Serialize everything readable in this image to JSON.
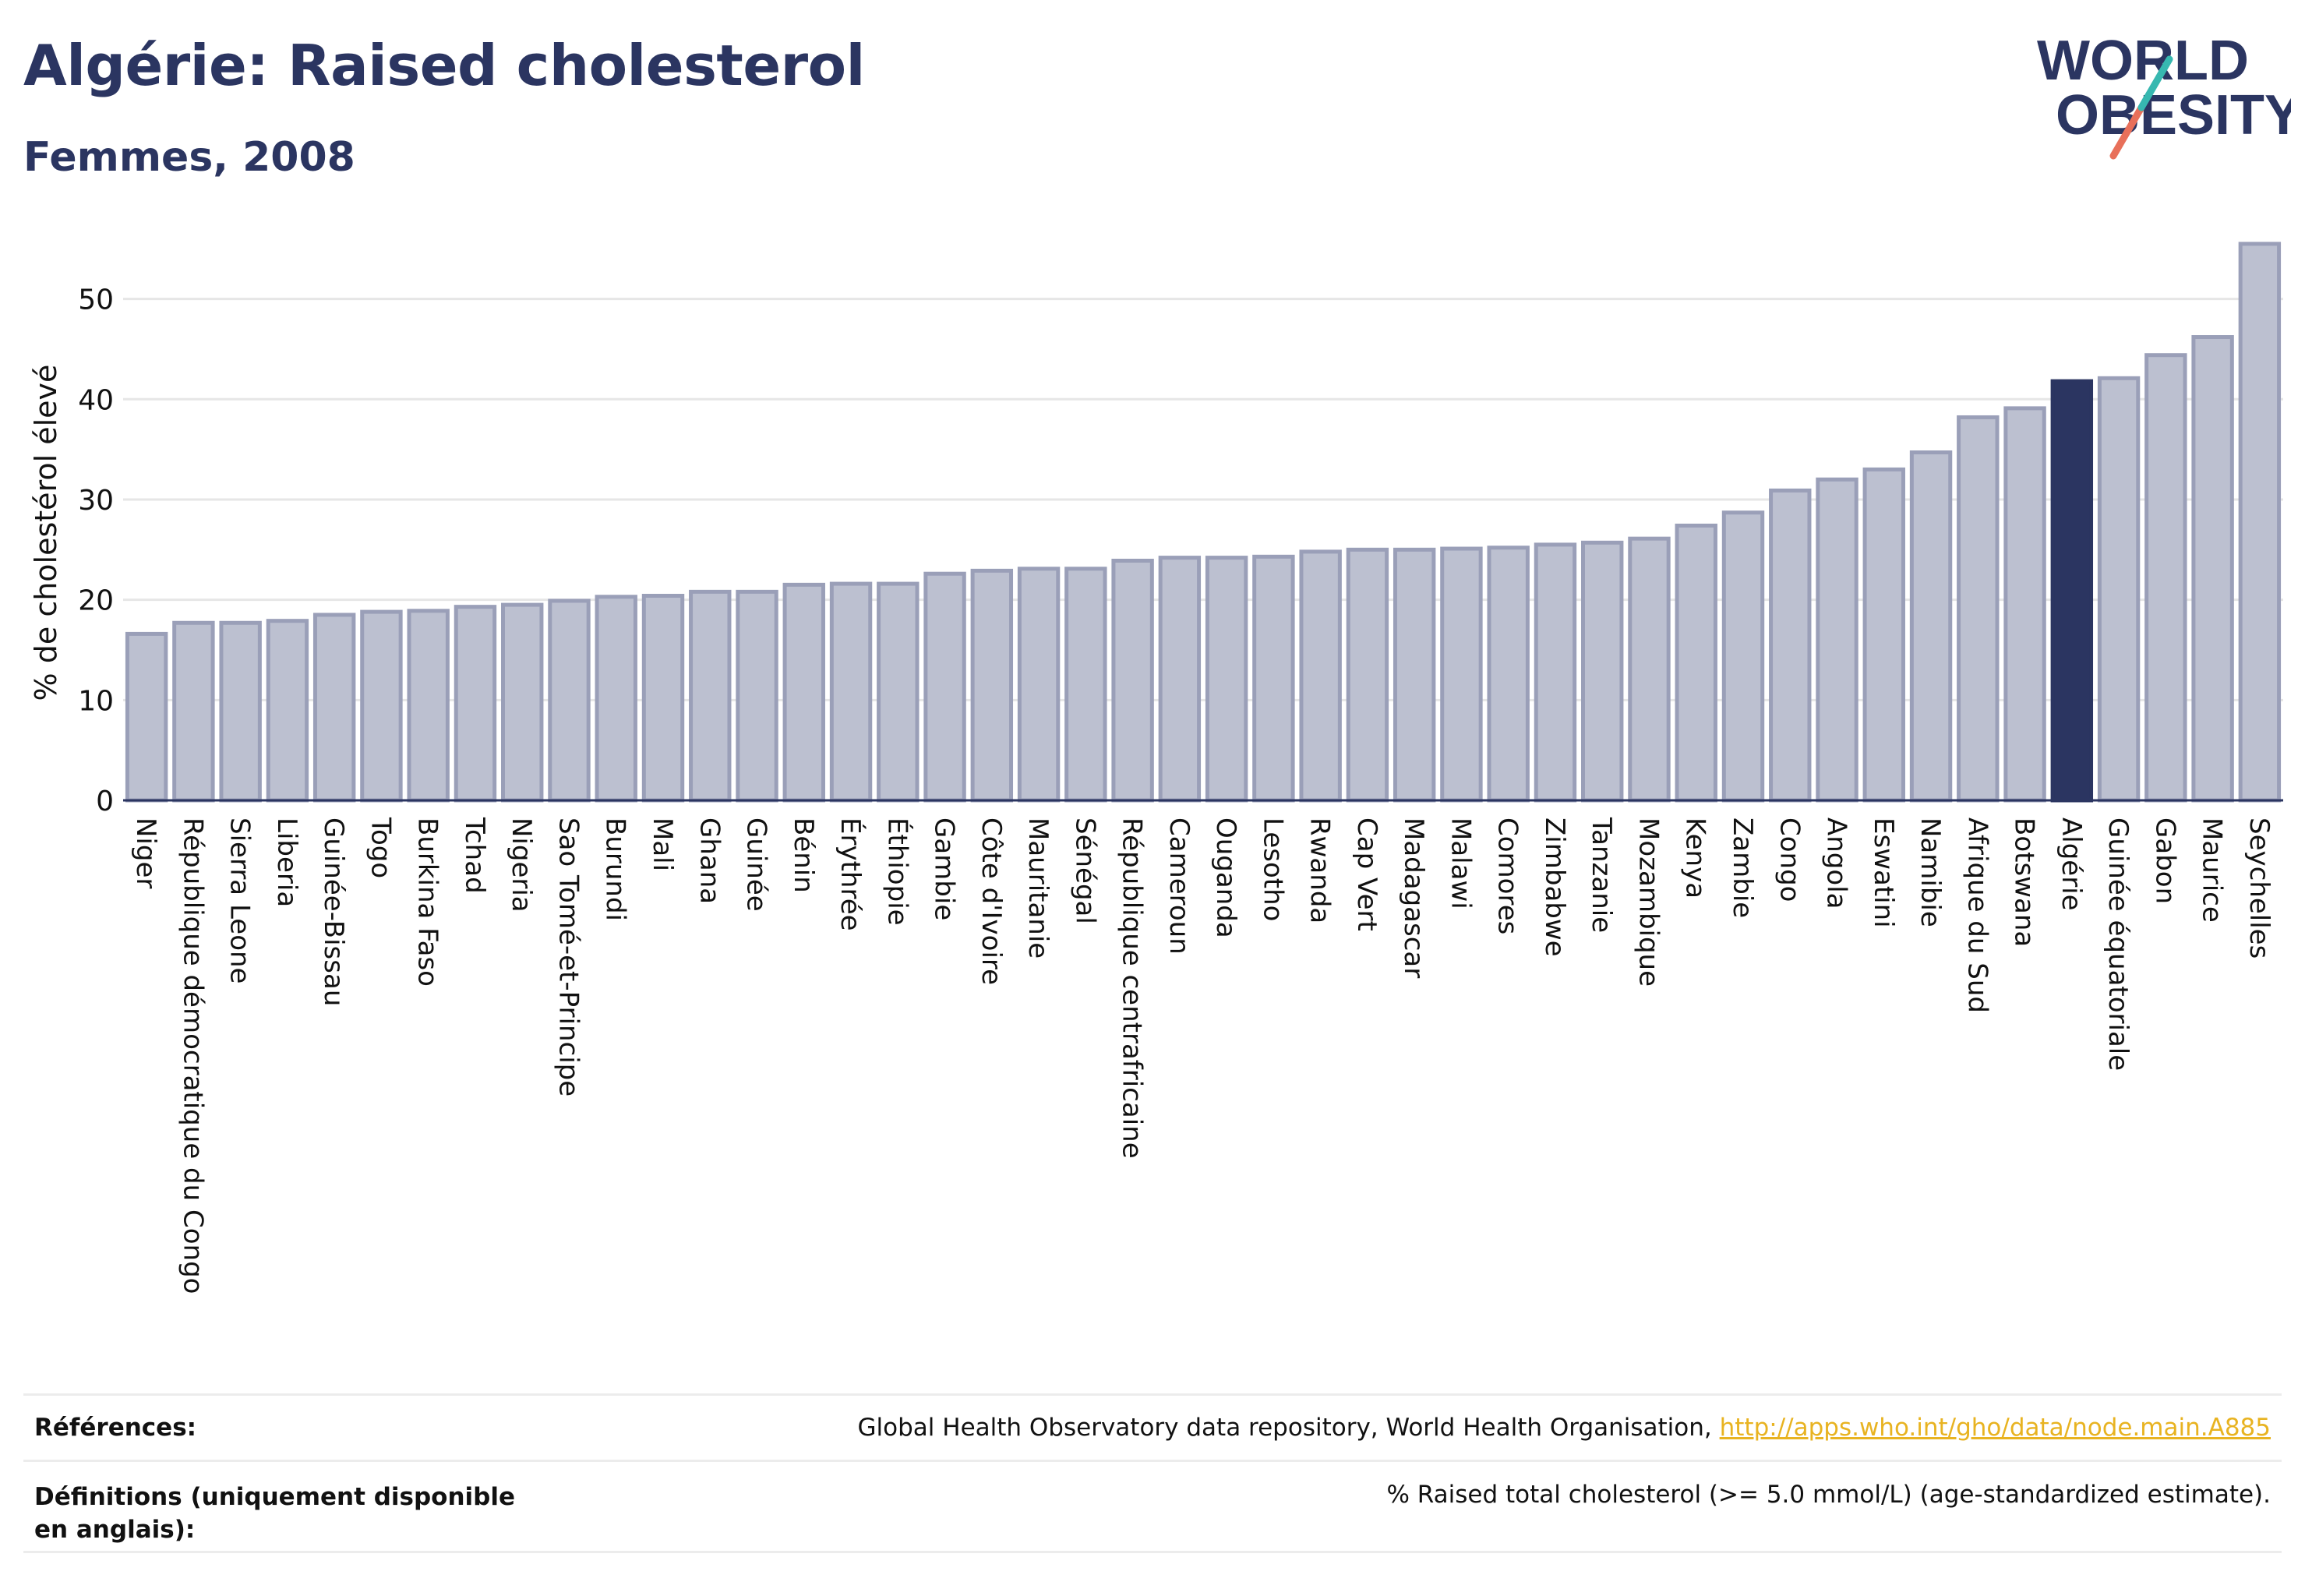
{
  "header": {
    "title": "Algérie: Raised cholesterol",
    "subtitle": "Femmes, 2008"
  },
  "logo": {
    "line1": "WORLD",
    "line2": "OBESITY"
  },
  "colors": {
    "title": "#2b3561",
    "highlight": "#2b3561",
    "bar_fill": "#bcc0d0",
    "bar_stroke": "#9a9fb8",
    "link": "#e8b321"
  },
  "chart_data": {
    "type": "bar",
    "title": "Algérie: Raised cholesterol",
    "subtitle": "Femmes, 2008",
    "xlabel": "",
    "ylabel": "% de cholestérol élevé",
    "ylim": [
      0,
      56.5
    ],
    "yticks": [
      0,
      10,
      20,
      30,
      40,
      50
    ],
    "grid": true,
    "highlight": "Algérie",
    "categories": [
      "Niger",
      "République démocratique du Congo",
      "Sierra Leone",
      "Liberia",
      "Guinée-Bissau",
      "Togo",
      "Burkina Faso",
      "Tchad",
      "Nigeria",
      "Sao Tomé-et-Principe",
      "Burundi",
      "Mali",
      "Ghana",
      "Guinée",
      "Bénin",
      "Érythrée",
      "Éthiopie",
      "Gambie",
      "Côte d'Ivoire",
      "Mauritanie",
      "Sénégal",
      "République centrafricaine",
      "Cameroun",
      "Ouganda",
      "Lesotho",
      "Rwanda",
      "Cap Vert",
      "Madagascar",
      "Malawi",
      "Comores",
      "Zimbabwe",
      "Tanzanie",
      "Mozambique",
      "Kenya",
      "Zambie",
      "Congo",
      "Angola",
      "Eswatini",
      "Namibie",
      "Afrique du Sud",
      "Botswana",
      "Algérie",
      "Guinée équatoriale",
      "Gabon",
      "Maurice",
      "Seychelles"
    ],
    "values": [
      16.6,
      17.7,
      17.7,
      17.9,
      18.5,
      18.8,
      18.9,
      19.3,
      19.5,
      19.9,
      20.3,
      20.4,
      20.8,
      20.8,
      21.5,
      21.6,
      21.6,
      22.6,
      22.9,
      23.1,
      23.1,
      23.9,
      24.2,
      24.2,
      24.3,
      24.8,
      25.0,
      25.0,
      25.1,
      25.2,
      25.5,
      25.7,
      26.1,
      27.4,
      28.7,
      30.9,
      32.0,
      33.0,
      34.7,
      38.2,
      39.1,
      41.8,
      42.1,
      44.4,
      46.2,
      55.5
    ]
  },
  "footer": {
    "references_label": "Références:",
    "references_text": "Global Health Observatory data repository, World Health Organisation, ",
    "references_link": "http://apps.who.int/gho/data/node.main.A885",
    "definitions_label": "Définitions (uniquement disponible en anglais):",
    "definitions_text": "% Raised total cholesterol (>= 5.0 mmol/L) (age-standardized estimate)."
  }
}
